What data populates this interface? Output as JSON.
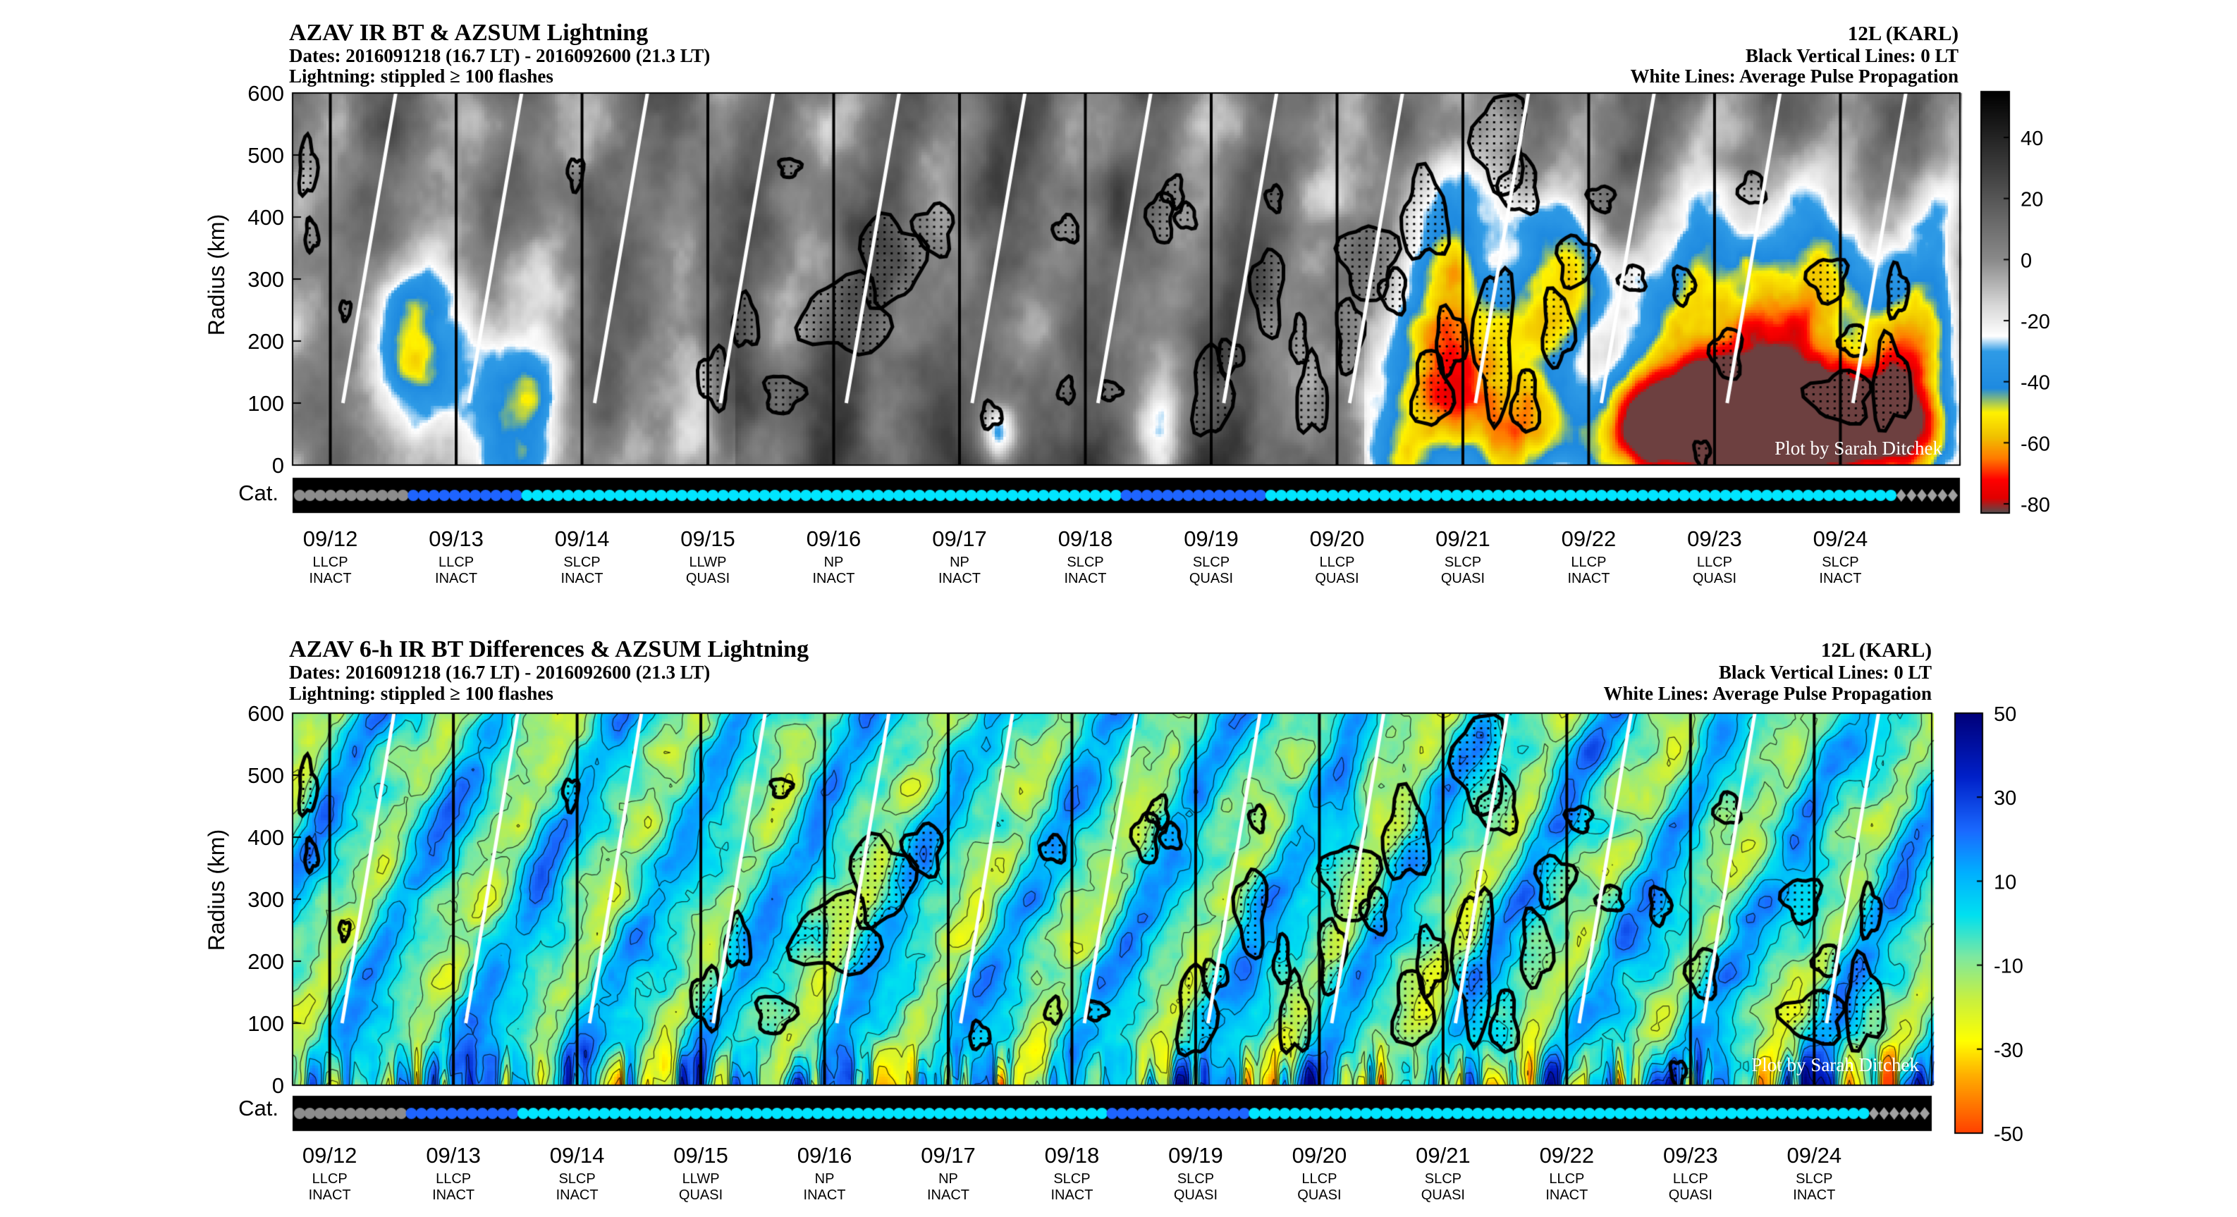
{
  "chart_data": [
    {
      "type": "heatmap",
      "id": "ir",
      "title": "AZAV IR BT & AZSUM Lightning",
      "dates_line": "Dates: 2016091218 (16.7 LT) - 2016092600 (21.3 LT)",
      "lightning_line": "Lightning: stippled ≥ 100 flashes",
      "right_title": "12L (KARL)",
      "right_line2": "Black Vertical Lines: 0 LT",
      "right_line3": "White Lines: Average Pulse Propagation",
      "ylabel": "Radius (km)",
      "ylim": [
        0,
        600
      ],
      "yticks": [
        "0",
        "100",
        "200",
        "300",
        "400",
        "500",
        "600"
      ],
      "colorbar": {
        "ticks": [
          "40",
          "20",
          "0",
          "-20",
          "-40",
          "-60",
          "-80"
        ],
        "range": [
          -83,
          55
        ],
        "colors": [
          "#000000",
          "#404040",
          "#808080",
          "#c0c0c0",
          "#ffffff",
          "#1e90ff",
          "#00c8ff",
          "#fff000",
          "#ff8c00",
          "#ff0000",
          "#404040"
        ]
      },
      "watermark": "Plot by Sarah Ditchek",
      "cat_label": "Cat."
    },
    {
      "type": "heatmap",
      "id": "diff",
      "title": "AZAV 6-h IR BT Differences & AZSUM Lightning",
      "dates_line": "Dates: 2016091218 (16.7 LT) - 2016092600 (21.3 LT)",
      "lightning_line": "Lightning: stippled ≥ 100 flashes",
      "right_title": "12L (KARL)",
      "right_line2": "Black Vertical Lines: 0 LT",
      "right_line3": "White Lines: Average Pulse Propagation",
      "ylabel": "Radius (km)",
      "ylim": [
        0,
        600
      ],
      "yticks": [
        "0",
        "100",
        "200",
        "300",
        "400",
        "500",
        "600"
      ],
      "colorbar": {
        "ticks": [
          "50",
          "30",
          "10",
          "-10",
          "-30",
          "-50"
        ],
        "range": [
          -50,
          50
        ],
        "colors": [
          "#00008b",
          "#0050ff",
          "#00c8ff",
          "#90ee90",
          "#ffff00",
          "#ff8c00",
          "#ff4500"
        ]
      },
      "watermark": "Plot by Sarah Ditchek",
      "cat_label": "Cat."
    }
  ],
  "dates": [
    "09/12",
    "09/13",
    "09/14",
    "09/15",
    "09/16",
    "09/17",
    "09/18",
    "09/19",
    "09/20",
    "09/21",
    "09/22",
    "09/23",
    "09/24"
  ],
  "shear_class": [
    "LLCP",
    "LLCP",
    "SLCP",
    "LLWP",
    "NP",
    "NP",
    "SLCP",
    "SLCP",
    "LLCP",
    "SLCP",
    "LLCP",
    "LLCP",
    "SLCP"
  ],
  "activity": [
    "INACT",
    "INACT",
    "INACT",
    "QUASI",
    "INACT",
    "INACT",
    "INACT",
    "QUASI",
    "QUASI",
    "QUASI",
    "INACT",
    "QUASI",
    "INACT"
  ],
  "category_track": {
    "colors": {
      "grey": "#8c8c8c",
      "blue": "#1e64ff",
      "cyan": "#00e5ff",
      "diamond": "#a0a0a0"
    },
    "sequence": "gggggggggggbbbbbbbbbbbccccccccccccccccccccccccccccccccccccccccccccccccccccccccccbbbbbbbbbbbbbbcccccccccccccccccccccccccccccccccccccccccccccccccccccccccccccdddddd"
  }
}
